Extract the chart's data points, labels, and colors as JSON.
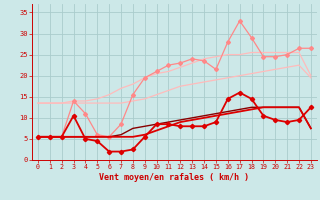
{
  "x": [
    0,
    1,
    2,
    3,
    4,
    5,
    6,
    7,
    8,
    9,
    10,
    11,
    12,
    13,
    14,
    15,
    16,
    17,
    18,
    19,
    20,
    21,
    22,
    23
  ],
  "line_jagged_red": [
    5.5,
    5.5,
    5.5,
    10.5,
    5.0,
    4.5,
    2.0,
    2.0,
    2.5,
    5.5,
    8.5,
    8.5,
    8.0,
    8.0,
    8.0,
    9.0,
    14.5,
    16.0,
    14.5,
    10.5,
    9.5,
    9.0,
    9.5,
    12.5
  ],
  "line_jagged_red_color": "#dd0000",
  "line_smooth_red": [
    5.5,
    5.5,
    5.5,
    5.5,
    5.5,
    5.5,
    5.5,
    5.5,
    5.5,
    6.0,
    7.0,
    8.0,
    9.0,
    9.5,
    10.0,
    10.5,
    11.0,
    11.5,
    12.0,
    12.5,
    12.5,
    12.5,
    12.5,
    7.5
  ],
  "line_smooth_red_color": "#dd0000",
  "line_pink_upper_jagged": [
    5.5,
    5.5,
    5.5,
    14.0,
    11.0,
    6.0,
    5.5,
    8.5,
    15.5,
    19.5,
    21.0,
    22.5,
    23.0,
    24.0,
    23.5,
    21.5,
    28.0,
    33.0,
    29.0,
    24.5,
    24.5,
    25.0,
    26.5,
    26.5
  ],
  "line_pink_upper_jagged_color": "#ff8888",
  "line_pink_upper_smooth": [
    13.5,
    13.5,
    13.5,
    14.0,
    14.0,
    14.5,
    15.5,
    17.0,
    18.0,
    19.5,
    20.5,
    21.0,
    22.0,
    23.0,
    24.0,
    24.5,
    25.0,
    25.0,
    25.5,
    25.5,
    25.5,
    25.5,
    25.5,
    20.0
  ],
  "line_pink_upper_smooth_color": "#ffbbbb",
  "line_pink_lower_smooth": [
    13.5,
    13.5,
    13.5,
    13.5,
    13.5,
    13.5,
    13.5,
    13.5,
    14.0,
    14.5,
    15.5,
    16.5,
    17.5,
    18.0,
    18.5,
    19.0,
    19.5,
    20.0,
    20.5,
    21.0,
    21.5,
    22.0,
    22.5,
    19.5
  ],
  "line_pink_lower_smooth_color": "#ffbbbb",
  "line_dark_smooth": [
    5.5,
    5.5,
    5.5,
    5.5,
    5.5,
    5.5,
    5.5,
    6.0,
    7.5,
    8.0,
    8.5,
    9.0,
    9.5,
    10.0,
    10.5,
    11.0,
    11.5,
    12.0,
    12.5,
    12.5,
    12.5,
    12.5,
    12.5,
    7.5
  ],
  "line_dark_smooth_color": "#880000",
  "xlabel": "Vent moyen/en rafales ( km/h )",
  "xlim": [
    -0.5,
    23.5
  ],
  "ylim": [
    0,
    37
  ],
  "yticks": [
    0,
    5,
    10,
    15,
    20,
    25,
    30,
    35
  ],
  "xticks": [
    0,
    1,
    2,
    3,
    4,
    5,
    6,
    7,
    8,
    9,
    10,
    11,
    12,
    13,
    14,
    15,
    16,
    17,
    18,
    19,
    20,
    21,
    22,
    23
  ],
  "bg_color": "#cce8e8",
  "grid_color": "#aacccc",
  "text_color": "#cc0000",
  "tick_color": "#cc0000"
}
